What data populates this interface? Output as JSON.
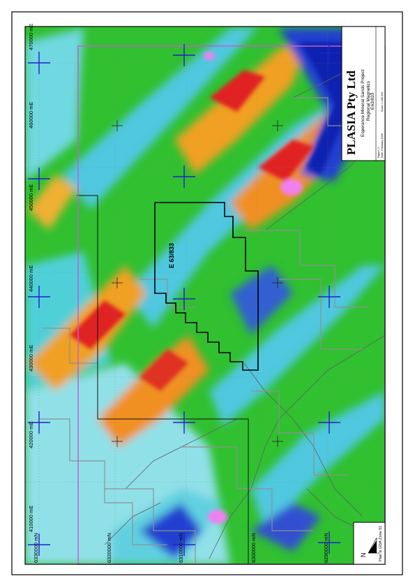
{
  "title_block": {
    "company": "PLASIA Pty Ltd",
    "project": "Esperance Mineral Sands Project",
    "map_title": "Regional Magnetics",
    "tenement": "E63/833",
    "figure_label": "Figure: 2",
    "date_label": "Date: February 2006",
    "scale_label": "Scale: 1:250 000"
  },
  "legend_box": {
    "north_label": "N",
    "datum_label": "Plan is GDA Zone 51"
  },
  "tenement_label": "E 63/833",
  "easting_labels": [
    "410000 mE",
    "420000 mE",
    "430000 mE",
    "440000 mE",
    "450000 mE",
    "460000 mE",
    "470000 mE"
  ],
  "northing_labels": [
    "6330000 mN",
    "6320000 mN",
    "6310000 mN",
    "6300000 mN",
    "6290000 mN"
  ],
  "colors": {
    "magnetic_low": "#1020c0",
    "magnetic_mid_low": "#40d0e0",
    "magnetic_mid": "#30c030",
    "magnetic_mid_high": "#f0a020",
    "magnetic_high": "#e02020",
    "magnetic_peak": "#f080f0",
    "boundary": "#c060d0",
    "grid_cross": "#2020d0"
  }
}
